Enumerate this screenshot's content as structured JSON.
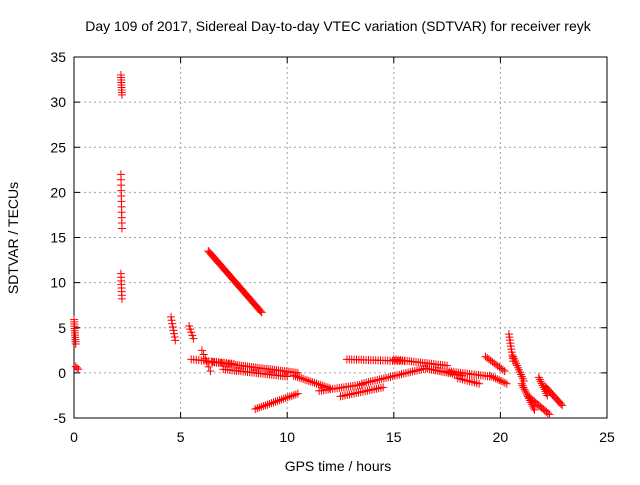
{
  "chart_data": {
    "type": "scatter",
    "title": "Day 109 of 2017, Sidereal Day-to-day VTEC variation (SDTVAR) for receiver reyk",
    "xlabel": "GPS time / hours",
    "ylabel": "SDTVAR / TECUs",
    "xlim": [
      0,
      25
    ],
    "ylim": [
      -5,
      35
    ],
    "xticks": [
      0,
      5,
      10,
      15,
      20,
      25
    ],
    "yticks": [
      -5,
      0,
      5,
      10,
      15,
      20,
      25,
      30,
      35
    ],
    "grid": true,
    "marker": "+",
    "color": "#ff0000",
    "series": [
      {
        "name": "SDTVAR",
        "segments": [
          {
            "x": [
              0.0,
              0.08
            ],
            "y": [
              5.9,
              3.2
            ],
            "n": 12
          },
          {
            "x": [
              0.08,
              0.2
            ],
            "y": [
              0.7,
              0.4
            ],
            "n": 3
          },
          {
            "x": [
              2.2,
              2.25
            ],
            "y": [
              33.0,
              30.8
            ],
            "n": 9
          },
          {
            "x": [
              2.2,
              2.25
            ],
            "y": [
              22.0,
              16.0
            ],
            "n": 11
          },
          {
            "x": [
              2.2,
              2.25
            ],
            "y": [
              11.0,
              8.2
            ],
            "n": 8
          },
          {
            "x": [
              4.55,
              4.75
            ],
            "y": [
              6.2,
              3.6
            ],
            "n": 8
          },
          {
            "x": [
              5.4,
              5.6
            ],
            "y": [
              5.2,
              3.8
            ],
            "n": 5
          },
          {
            "x": [
              5.5,
              7.5
            ],
            "y": [
              1.5,
              1.0
            ],
            "n": 18
          },
          {
            "x": [
              6.0,
              6.4
            ],
            "y": [
              2.5,
              0.2
            ],
            "n": 6
          },
          {
            "x": [
              6.3,
              8.8
            ],
            "y": [
              13.5,
              6.7
            ],
            "n": 55
          },
          {
            "x": [
              6.5,
              10.5
            ],
            "y": [
              1.2,
              0.0
            ],
            "n": 45
          },
          {
            "x": [
              7.0,
              10.0
            ],
            "y": [
              0.4,
              -0.4
            ],
            "n": 30
          },
          {
            "x": [
              8.5,
              10.5
            ],
            "y": [
              -4.0,
              -2.3
            ],
            "n": 22
          },
          {
            "x": [
              10.3,
              12.0
            ],
            "y": [
              -0.3,
              -1.7
            ],
            "n": 20
          },
          {
            "x": [
              11.5,
              13.5
            ],
            "y": [
              -2.0,
              -1.3
            ],
            "n": 20
          },
          {
            "x": [
              12.5,
              14.5
            ],
            "y": [
              -2.6,
              -1.6
            ],
            "n": 20
          },
          {
            "x": [
              12.8,
              15.5
            ],
            "y": [
              1.5,
              1.3
            ],
            "n": 25
          },
          {
            "x": [
              13.5,
              16.5
            ],
            "y": [
              -1.2,
              0.5
            ],
            "n": 30
          },
          {
            "x": [
              15.0,
              17.5
            ],
            "y": [
              1.5,
              0.8
            ],
            "n": 25
          },
          {
            "x": [
              16.5,
              18.2
            ],
            "y": [
              0.5,
              -0.3
            ],
            "n": 20
          },
          {
            "x": [
              17.5,
              19.5
            ],
            "y": [
              0.2,
              -0.4
            ],
            "n": 20
          },
          {
            "x": [
              18.0,
              19.0
            ],
            "y": [
              -0.6,
              -1.2
            ],
            "n": 10
          },
          {
            "x": [
              19.3,
              20.2
            ],
            "y": [
              1.8,
              0.2
            ],
            "n": 12
          },
          {
            "x": [
              19.5,
              20.3
            ],
            "y": [
              -0.3,
              -1.2
            ],
            "n": 10
          },
          {
            "x": [
              20.4,
              20.6
            ],
            "y": [
              4.3,
              1.3
            ],
            "n": 10
          },
          {
            "x": [
              20.6,
              21.1
            ],
            "y": [
              1.8,
              -0.9
            ],
            "n": 12
          },
          {
            "x": [
              21.0,
              21.6
            ],
            "y": [
              -1.2,
              -4.1
            ],
            "n": 15
          },
          {
            "x": [
              21.3,
              22.3
            ],
            "y": [
              -2.6,
              -4.6
            ],
            "n": 15
          },
          {
            "x": [
              21.8,
              22.2
            ],
            "y": [
              -0.5,
              -2.5
            ],
            "n": 10
          },
          {
            "x": [
              22.1,
              22.9
            ],
            "y": [
              -1.5,
              -3.6
            ],
            "n": 15
          }
        ]
      }
    ]
  }
}
